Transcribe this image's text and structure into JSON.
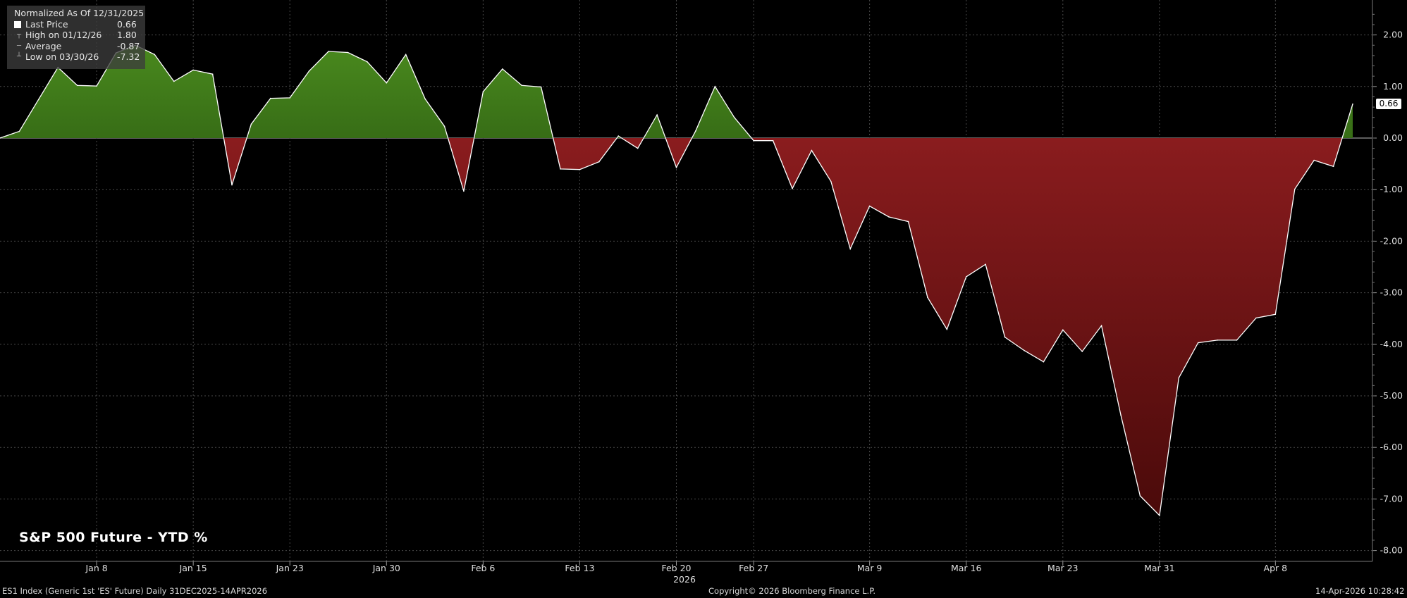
{
  "legend": {
    "header": "Normalized As Of 12/31/2025",
    "rows": [
      {
        "label": "Last Price",
        "value": "0.66"
      },
      {
        "label": "High on 01/12/26",
        "value": "1.80"
      },
      {
        "label": "Average",
        "value": "-0.87"
      },
      {
        "label": "Low on 03/30/26",
        "value": "-7.32"
      }
    ]
  },
  "title": "S&P 500 Future - YTD %",
  "footer": {
    "left": "ES1 Index (Generic 1st 'ES' Future) Daily 31DEC2025-14APR2026",
    "center": "Copyright© 2026 Bloomberg Finance L.P.",
    "right": "14-Apr-2026 10:28:42"
  },
  "last_price_tag": "0.66",
  "colors": {
    "positive": "#3f7a1a",
    "negative": "#8a1c1e",
    "line": "#ffffff",
    "grid": "#555555",
    "background": "#000000"
  },
  "chart_data": {
    "type": "area",
    "ylim": [
      -8.2,
      2.7
    ],
    "y_ticks": [
      "2.00",
      "1.00",
      "0.00",
      "-1.00",
      "-2.00",
      "-3.00",
      "-4.00",
      "-5.00",
      "-6.00",
      "-7.00",
      "-8.00"
    ],
    "y_tick_values": [
      2,
      1,
      0,
      -1,
      -2,
      -3,
      -4,
      -5,
      -6,
      -7,
      -8
    ],
    "x_year_label": "2026",
    "x_ticks": [
      "Jan 8",
      "Jan 15",
      "Jan 23",
      "Jan 30",
      "Feb 6",
      "Feb 13",
      "Feb 20",
      "Feb 27",
      "Mar 9",
      "Mar 16",
      "Mar 23",
      "Mar 31",
      "Apr 8"
    ],
    "x_tick_index": [
      5,
      10,
      15,
      20,
      25,
      30,
      35,
      39,
      45,
      50,
      55,
      60,
      66
    ],
    "dates": [
      "12/31",
      "1/2",
      "1/5",
      "1/6",
      "1/7",
      "1/8",
      "1/9",
      "1/12",
      "1/13",
      "1/14",
      "1/15",
      "1/16",
      "1/20",
      "1/21",
      "1/22",
      "1/23",
      "1/26",
      "1/27",
      "1/28",
      "1/29",
      "1/30",
      "2/2",
      "2/3",
      "2/4",
      "2/5",
      "2/6",
      "2/9",
      "2/10",
      "2/11",
      "2/12",
      "2/13",
      "2/17",
      "2/18",
      "2/19",
      "2/20",
      "2/23",
      "2/24",
      "2/25",
      "2/26",
      "2/27",
      "3/2",
      "3/3",
      "3/4",
      "3/5",
      "3/6",
      "3/9",
      "3/10",
      "3/11",
      "3/12",
      "3/13",
      "3/16",
      "3/17",
      "3/18",
      "3/19",
      "3/20",
      "3/23",
      "3/24",
      "3/25",
      "3/26",
      "3/27",
      "3/30",
      "3/31",
      "4/1",
      "4/2",
      "4/6",
      "4/7",
      "4/8",
      "4/9",
      "4/10",
      "4/13",
      "4/14"
    ],
    "values": [
      0.0,
      0.13,
      0.75,
      1.37,
      1.02,
      1.01,
      1.65,
      1.8,
      1.62,
      1.1,
      1.32,
      1.24,
      -0.91,
      0.27,
      0.77,
      0.78,
      1.3,
      1.68,
      1.66,
      1.48,
      1.07,
      1.62,
      0.76,
      0.23,
      -1.03,
      0.9,
      1.34,
      1.02,
      0.99,
      -0.6,
      -0.61,
      -0.46,
      0.04,
      -0.2,
      0.45,
      -0.57,
      0.14,
      1.0,
      0.4,
      -0.05,
      -0.05,
      -0.98,
      -0.24,
      -0.84,
      -2.15,
      -1.32,
      -1.53,
      -1.62,
      -3.09,
      -3.71,
      -2.69,
      -2.45,
      -3.86,
      -4.12,
      -4.34,
      -3.72,
      -4.14,
      -3.64,
      -5.37,
      -6.94,
      -7.32,
      -4.65,
      -3.97,
      -3.92,
      -3.92,
      -3.49,
      -3.42,
      -0.99,
      -0.43,
      -0.55,
      0.66
    ]
  }
}
